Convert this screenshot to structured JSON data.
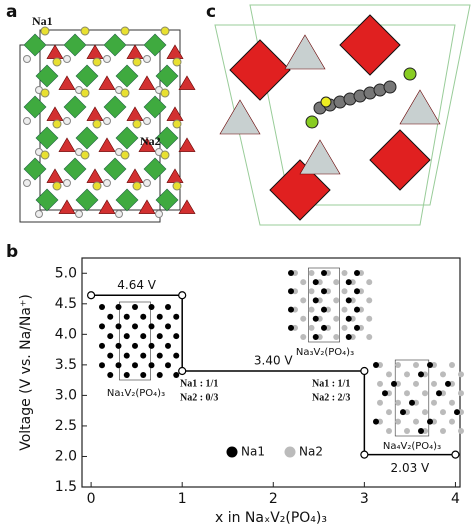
{
  "panels": {
    "a": {
      "label": "a",
      "annotations": [
        "Na1",
        "Na2"
      ]
    },
    "b": {
      "label": "b"
    },
    "c": {
      "label": "c"
    }
  },
  "chart_data": {
    "type": "line",
    "x_label": "x in NaₓV₂(PO₄)₃",
    "y_label": "Voltage (V vs. Na/Na⁺)",
    "x": [
      0,
      1,
      1,
      3,
      3,
      4
    ],
    "series": [
      {
        "color": "#000000",
        "values": [
          4.64,
          4.64,
          3.4,
          3.4,
          2.03,
          2.03
        ]
      }
    ],
    "xlim": [
      -0.1,
      4.05
    ],
    "ylim": [
      1.5,
      5.25
    ],
    "xticks": [
      0,
      1,
      2,
      3,
      4
    ],
    "yticks": [
      1.5,
      {
        "value": 2,
        "label": "2.0"
      },
      2.5,
      {
        "value": 3,
        "label": "3.0"
      },
      3.5,
      {
        "value": 4,
        "label": "4.0"
      },
      4.5,
      {
        "value": 5,
        "label": "5.0"
      }
    ],
    "annotations": [
      "4.64 V",
      "3.40 V",
      "2.03 V"
    ],
    "site_labels": [
      [
        "Na1 : 1/1",
        "Na2 : 0/3"
      ],
      [
        "Na1 : 1/1",
        "Na2 : 2/3"
      ]
    ],
    "insets": [
      "Na₁V₂(PO₄)₃",
      "Na₃V₂(PO₄)₃",
      "Na₄V₂(PO₄)₃"
    ],
    "legend": [
      {
        "label": "Na1",
        "color": "#000000"
      },
      {
        "label": "Na2",
        "color": "#bbbbbb"
      }
    ]
  }
}
